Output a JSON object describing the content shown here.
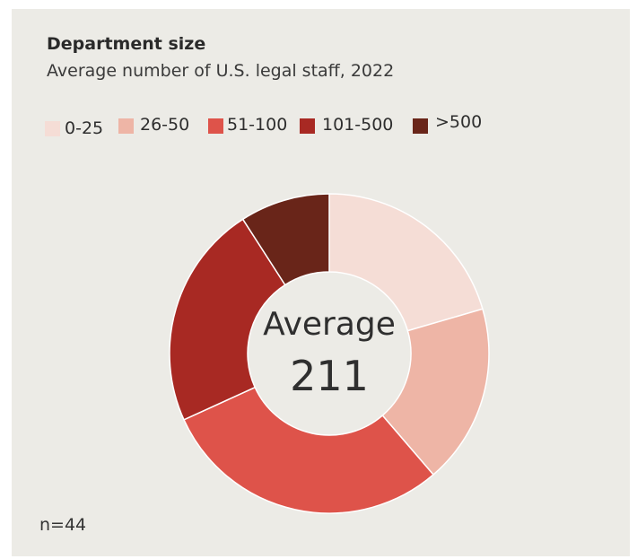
{
  "chart_data": {
    "type": "pie",
    "title": "Department size",
    "subtitle": "Average number of U.S. legal staff, 2022",
    "categories": [
      "0-25",
      "26-50",
      "51-100",
      "101-500",
      ">500"
    ],
    "values": [
      20.5,
      18.2,
      29.5,
      22.7,
      9.1
    ],
    "colors": [
      "#f5ddd6",
      "#eeb5a6",
      "#de534a",
      "#a82923",
      "#692519"
    ],
    "center_label": "Average",
    "center_value": "211",
    "legend_position": "top-left",
    "note": "n=44"
  }
}
